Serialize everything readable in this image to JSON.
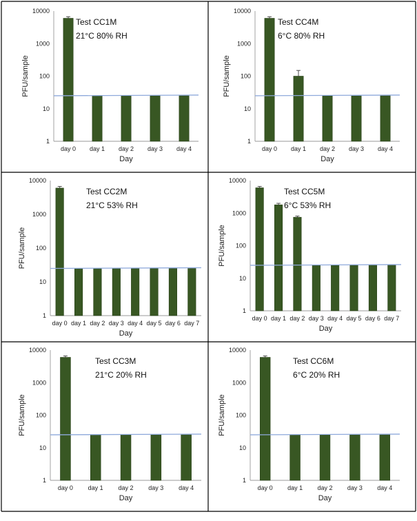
{
  "colors": {
    "bar": "#385723",
    "bar_edge": "#2a4219",
    "detection_line": "#8ea9db",
    "axis": "#999999"
  },
  "chart_data": [
    {
      "type": "bar",
      "title": "Test CC1M",
      "subtitle": "21°C 80% RH",
      "xlabel": "Day",
      "ylabel": "PFU/sample",
      "yscale": "log",
      "ylim": [
        1,
        10000
      ],
      "yticks": [
        "1",
        "10",
        "100",
        "1000",
        "10000"
      ],
      "categories": [
        "day 0",
        "day 1",
        "day 2",
        "day 3",
        "day 4"
      ],
      "values": [
        6000,
        25,
        25,
        25,
        25
      ],
      "errors": [
        700,
        0,
        0,
        0,
        0
      ],
      "detection_limit": 25
    },
    {
      "type": "bar",
      "title": "Test CC4M",
      "subtitle": "6°C 80% RH",
      "xlabel": "Day",
      "ylabel": "PFU/sample",
      "yscale": "log",
      "ylim": [
        1,
        10000
      ],
      "yticks": [
        "1",
        "10",
        "100",
        "1000",
        "10000"
      ],
      "categories": [
        "day 0",
        "day 1",
        "day 2",
        "day 3",
        "day 4"
      ],
      "values": [
        6000,
        100,
        25,
        25,
        25
      ],
      "errors": [
        700,
        50,
        0,
        0,
        0
      ],
      "detection_limit": 25
    },
    {
      "type": "bar",
      "title": "Test CC2M",
      "subtitle": "21°C 53% RH",
      "xlabel": "Day",
      "ylabel": "PFU/sample",
      "yscale": "log",
      "ylim": [
        1,
        10000
      ],
      "yticks": [
        "1",
        "10",
        "100",
        "1000",
        "10000"
      ],
      "categories": [
        "day 0",
        "day 1",
        "day 2",
        "day 3",
        "day 4",
        "day 5",
        "day 6",
        "day 7"
      ],
      "values": [
        6000,
        25,
        25,
        25,
        25,
        25,
        25,
        25
      ],
      "errors": [
        700,
        0,
        0,
        0,
        0,
        0,
        0,
        0
      ],
      "detection_limit": 25
    },
    {
      "type": "bar",
      "title": "Test CC5M",
      "subtitle": "6°C 53% RH",
      "xlabel": "Day",
      "ylabel": "PFU/sample",
      "yscale": "log",
      "ylim": [
        1,
        10000
      ],
      "yticks": [
        "1",
        "10",
        "100",
        "1000",
        "10000"
      ],
      "categories": [
        "day 0",
        "day 1",
        "day 2",
        "day 3",
        "day 4",
        "day 5",
        "day 6",
        "day 7"
      ],
      "values": [
        6000,
        1800,
        750,
        25,
        25,
        25,
        25,
        25
      ],
      "errors": [
        600,
        200,
        60,
        0,
        0,
        0,
        0,
        0
      ],
      "detection_limit": 25
    },
    {
      "type": "bar",
      "title": "Test CC3M",
      "subtitle": "21°C 20% RH",
      "xlabel": "Day",
      "ylabel": "PFU/sample",
      "yscale": "log",
      "ylim": [
        1,
        10000
      ],
      "yticks": [
        "1",
        "10",
        "100",
        "1000",
        "10000"
      ],
      "categories": [
        "day 0",
        "day 1",
        "day 2",
        "day 3",
        "day 4"
      ],
      "values": [
        6000,
        25,
        25,
        25,
        25
      ],
      "errors": [
        600,
        0,
        0,
        0,
        0
      ],
      "detection_limit": 25
    },
    {
      "type": "bar",
      "title": "Test CC6M",
      "subtitle": "6°C 20% RH",
      "xlabel": "Day",
      "ylabel": "PFU/sample",
      "yscale": "log",
      "ylim": [
        1,
        10000
      ],
      "yticks": [
        "1",
        "10",
        "100",
        "1000",
        "10000"
      ],
      "categories": [
        "day 0",
        "day 1",
        "day 2",
        "day 3",
        "day 4"
      ],
      "values": [
        6000,
        25,
        25,
        25,
        25
      ],
      "errors": [
        600,
        0,
        0,
        0,
        0
      ],
      "detection_limit": 25
    }
  ]
}
